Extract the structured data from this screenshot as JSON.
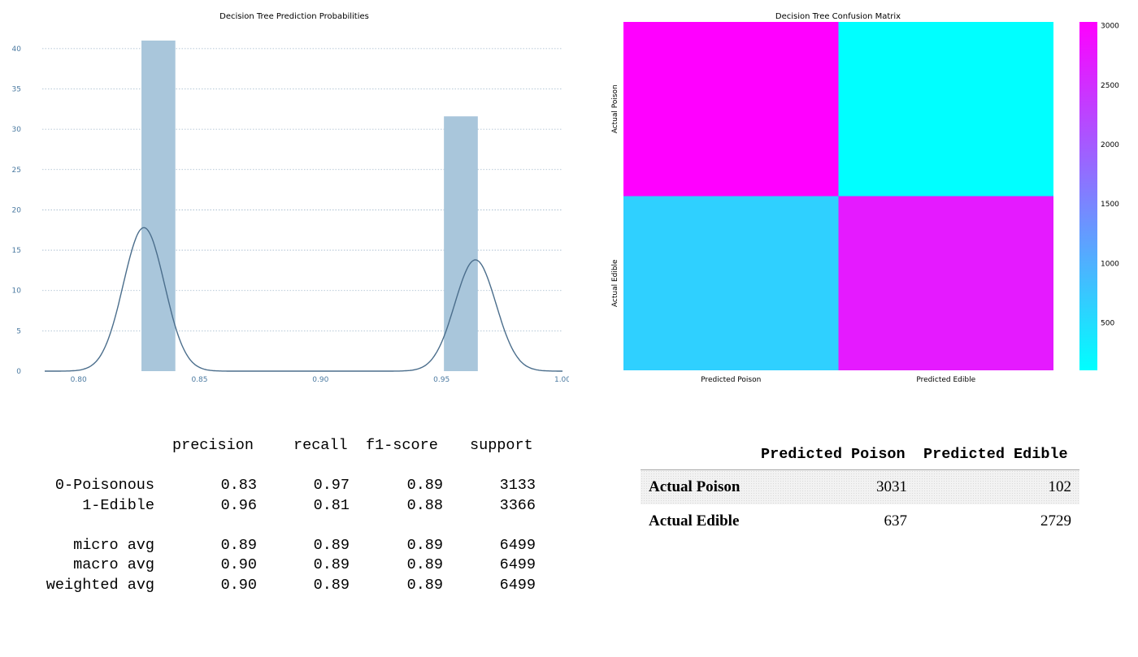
{
  "chart_data": [
    {
      "type": "bar",
      "subtype": "histogram-with-kde",
      "title": "Decision Tree Prediction Probabilities",
      "xlabel": "",
      "ylabel": "",
      "xlim": [
        0.785,
        1.0
      ],
      "ylim": [
        0,
        42
      ],
      "xticks": [
        0.8,
        0.85,
        0.9,
        0.95,
        1.0
      ],
      "xtick_labels": [
        "0.80",
        "0.85",
        "0.90",
        "0.95",
        "1.00"
      ],
      "yticks": [
        0,
        5,
        10,
        15,
        20,
        25,
        30,
        35,
        40
      ],
      "ytick_labels": [
        "0",
        "5",
        "10",
        "15",
        "20",
        "25",
        "30",
        "35",
        "40"
      ],
      "grid": "horizontal-dotted",
      "bars": [
        {
          "x0": 0.826,
          "x1": 0.84,
          "height": 41.0
        },
        {
          "x0": 0.951,
          "x1": 0.965,
          "height": 31.6
        }
      ],
      "kde_peaks": [
        {
          "mean": 0.827,
          "sd": 0.0085,
          "peak": 17.8
        },
        {
          "mean": 0.964,
          "sd": 0.0085,
          "peak": 13.8
        }
      ],
      "colors": {
        "bar": "#a9c6db",
        "kde": "#4b6e8c",
        "grid": "#9fb6ca",
        "tick": "#4b7aa1"
      }
    },
    {
      "type": "heatmap",
      "title": "Decision Tree Confusion Matrix",
      "x_categories": [
        "Predicted Poison",
        "Predicted Edible"
      ],
      "y_categories": [
        "Actual Poison",
        "Actual Edible"
      ],
      "values": [
        [
          3031,
          102
        ],
        [
          637,
          2729
        ]
      ],
      "colorbar_ticks": [
        500,
        1000,
        1500,
        2000,
        2500,
        3000
      ],
      "colorbar_tick_labels": [
        "500",
        "1000",
        "1500",
        "2000",
        "2500",
        "3000"
      ],
      "vmin": 102,
      "vmax": 3031,
      "colormap": "cool",
      "colors": {
        "low": "#00ffff",
        "high": "#ff00ff"
      }
    }
  ],
  "report": {
    "header": {
      "precision": "precision",
      "recall": "recall",
      "f1": "f1-score",
      "support": "support"
    },
    "rows": [
      {
        "label": "0-Poisonous",
        "precision": "0.83",
        "recall": "0.97",
        "f1": "0.89",
        "support": "3133"
      },
      {
        "label": "1-Edible",
        "precision": "0.96",
        "recall": "0.81",
        "f1": "0.88",
        "support": "3366"
      }
    ],
    "avg_rows": [
      {
        "label": "micro avg",
        "precision": "0.89",
        "recall": "0.89",
        "f1": "0.89",
        "support": "6499"
      },
      {
        "label": "macro avg",
        "precision": "0.90",
        "recall": "0.89",
        "f1": "0.89",
        "support": "6499"
      },
      {
        "label": "weighted avg",
        "precision": "0.90",
        "recall": "0.89",
        "f1": "0.89",
        "support": "6499"
      }
    ]
  },
  "cm_table": {
    "columns": [
      "Predicted Poison",
      "Predicted Edible"
    ],
    "rows": [
      {
        "label": "Actual Poison",
        "values": [
          "3031",
          "102"
        ]
      },
      {
        "label": "Actual Edible",
        "values": [
          "637",
          "2729"
        ]
      }
    ]
  }
}
